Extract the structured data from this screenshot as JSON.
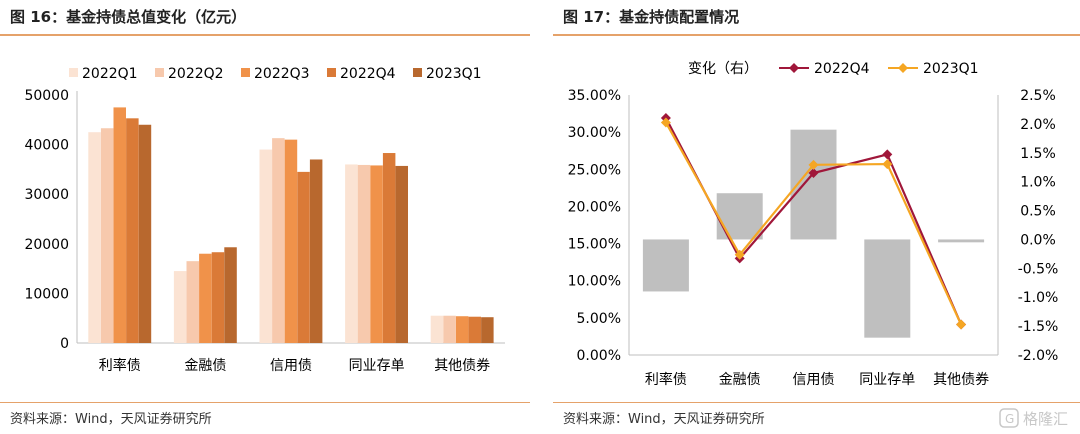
{
  "left": {
    "title": "图 16：基金持债总值变化（亿元）",
    "source": "资料来源：Wind，天风证券研究所"
  },
  "right": {
    "title": "图 17：基金持债配置情况",
    "source": "资料来源：Wind，天风证券研究所",
    "watermark": "格隆汇"
  },
  "chart_data": [
    {
      "type": "bar",
      "title": "基金持债总值变化（亿元）",
      "categories": [
        "利率债",
        "金融债",
        "信用债",
        "同业存单",
        "其他债券"
      ],
      "series": [
        {
          "name": "2022Q1",
          "color": "#fbe3d3",
          "values": [
            42500,
            14500,
            39000,
            36000,
            5500
          ]
        },
        {
          "name": "2022Q2",
          "color": "#f7c9ad",
          "values": [
            43300,
            16500,
            41300,
            35900,
            5500
          ]
        },
        {
          "name": "2022Q3",
          "color": "#f0924a",
          "values": [
            47500,
            18000,
            41000,
            35800,
            5400
          ]
        },
        {
          "name": "2022Q4",
          "color": "#da7a37",
          "values": [
            45300,
            18300,
            34500,
            38300,
            5300
          ]
        },
        {
          "name": "2023Q1",
          "color": "#b8682e",
          "values": [
            44000,
            19300,
            37000,
            35700,
            5200
          ]
        }
      ],
      "ylim": [
        0,
        50000
      ],
      "yticks": [
        "0",
        "10000",
        "20000",
        "30000",
        "40000",
        "50000"
      ],
      "legend": "top"
    },
    {
      "type": "bar+line",
      "title": "基金持债配置情况",
      "categories": [
        "利率债",
        "金融债",
        "信用债",
        "同业存单",
        "其他债券"
      ],
      "bar_series": {
        "name": "变化（右）",
        "color": "#bfbfbf",
        "values": [
          -0.9,
          0.8,
          1.9,
          -1.7,
          -0.05
        ]
      },
      "line_series": [
        {
          "name": "2022Q4",
          "color": "#a0173a",
          "values": [
            31.9,
            13.0,
            24.5,
            27.0,
            4.1
          ]
        },
        {
          "name": "2023Q1",
          "color": "#f5a623",
          "values": [
            31.3,
            13.5,
            25.6,
            25.7,
            4.1
          ]
        }
      ],
      "y_left": {
        "ylim": [
          0,
          35
        ],
        "ticks": [
          "0.00%",
          "5.00%",
          "10.00%",
          "15.00%",
          "20.00%",
          "25.00%",
          "30.00%",
          "35.00%"
        ]
      },
      "y_right": {
        "ylim": [
          -2.0,
          2.5
        ],
        "ticks": [
          "-2.0%",
          "-1.5%",
          "-1.0%",
          "-0.5%",
          "0.0%",
          "0.5%",
          "1.0%",
          "1.5%",
          "2.0%",
          "2.5%"
        ]
      },
      "legend": "top"
    }
  ]
}
